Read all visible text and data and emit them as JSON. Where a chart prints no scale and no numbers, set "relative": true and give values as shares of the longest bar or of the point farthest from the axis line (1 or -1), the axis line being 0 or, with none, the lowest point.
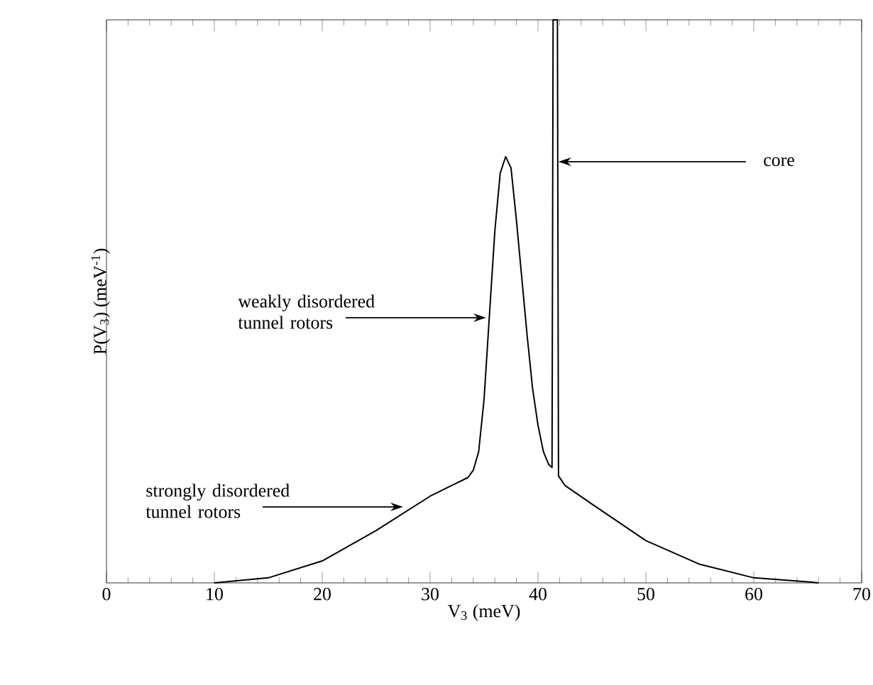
{
  "chart_data": {
    "type": "line",
    "xlabel": "V$_{3}$ (meV)",
    "ylabel": "P(V$_{3}$) (meV$^{-1}$)",
    "relative": true,
    "xlim": [
      0,
      70
    ],
    "xticks": [
      0,
      10,
      20,
      30,
      40,
      50,
      60,
      70
    ],
    "color": "#000000",
    "marker": "none",
    "line_style": "solid",
    "grid": false,
    "x": [
      10,
      15,
      20,
      25,
      30,
      32,
      33.5,
      34,
      34.5,
      35,
      35.5,
      36,
      36.5,
      37,
      37.5,
      38,
      38.5,
      39,
      39.5,
      40,
      40.5,
      41,
      41.3,
      41.4,
      41.8,
      41.9,
      42.5,
      45,
      50,
      55,
      60,
      65,
      66
    ],
    "values": [
      0,
      0.009,
      0.039,
      0.093,
      0.154,
      0.173,
      0.187,
      0.2,
      0.233,
      0.326,
      0.476,
      0.625,
      0.728,
      0.757,
      0.737,
      0.644,
      0.541,
      0.438,
      0.345,
      0.28,
      0.233,
      0.21,
      0.205,
      1,
      1,
      0.19,
      0.173,
      0.14,
      0.075,
      0.033,
      0.009,
      0.002,
      0
    ],
    "annotations": [
      {
        "text": "core",
        "x": 41.9,
        "y": 0.748
      },
      {
        "text": "weakly disordered tunnel rotors",
        "x": 35.2,
        "y": 0.471
      },
      {
        "text": "strongly disordered tunnel rotors",
        "x": 27.5,
        "y": 0.135
      }
    ]
  }
}
